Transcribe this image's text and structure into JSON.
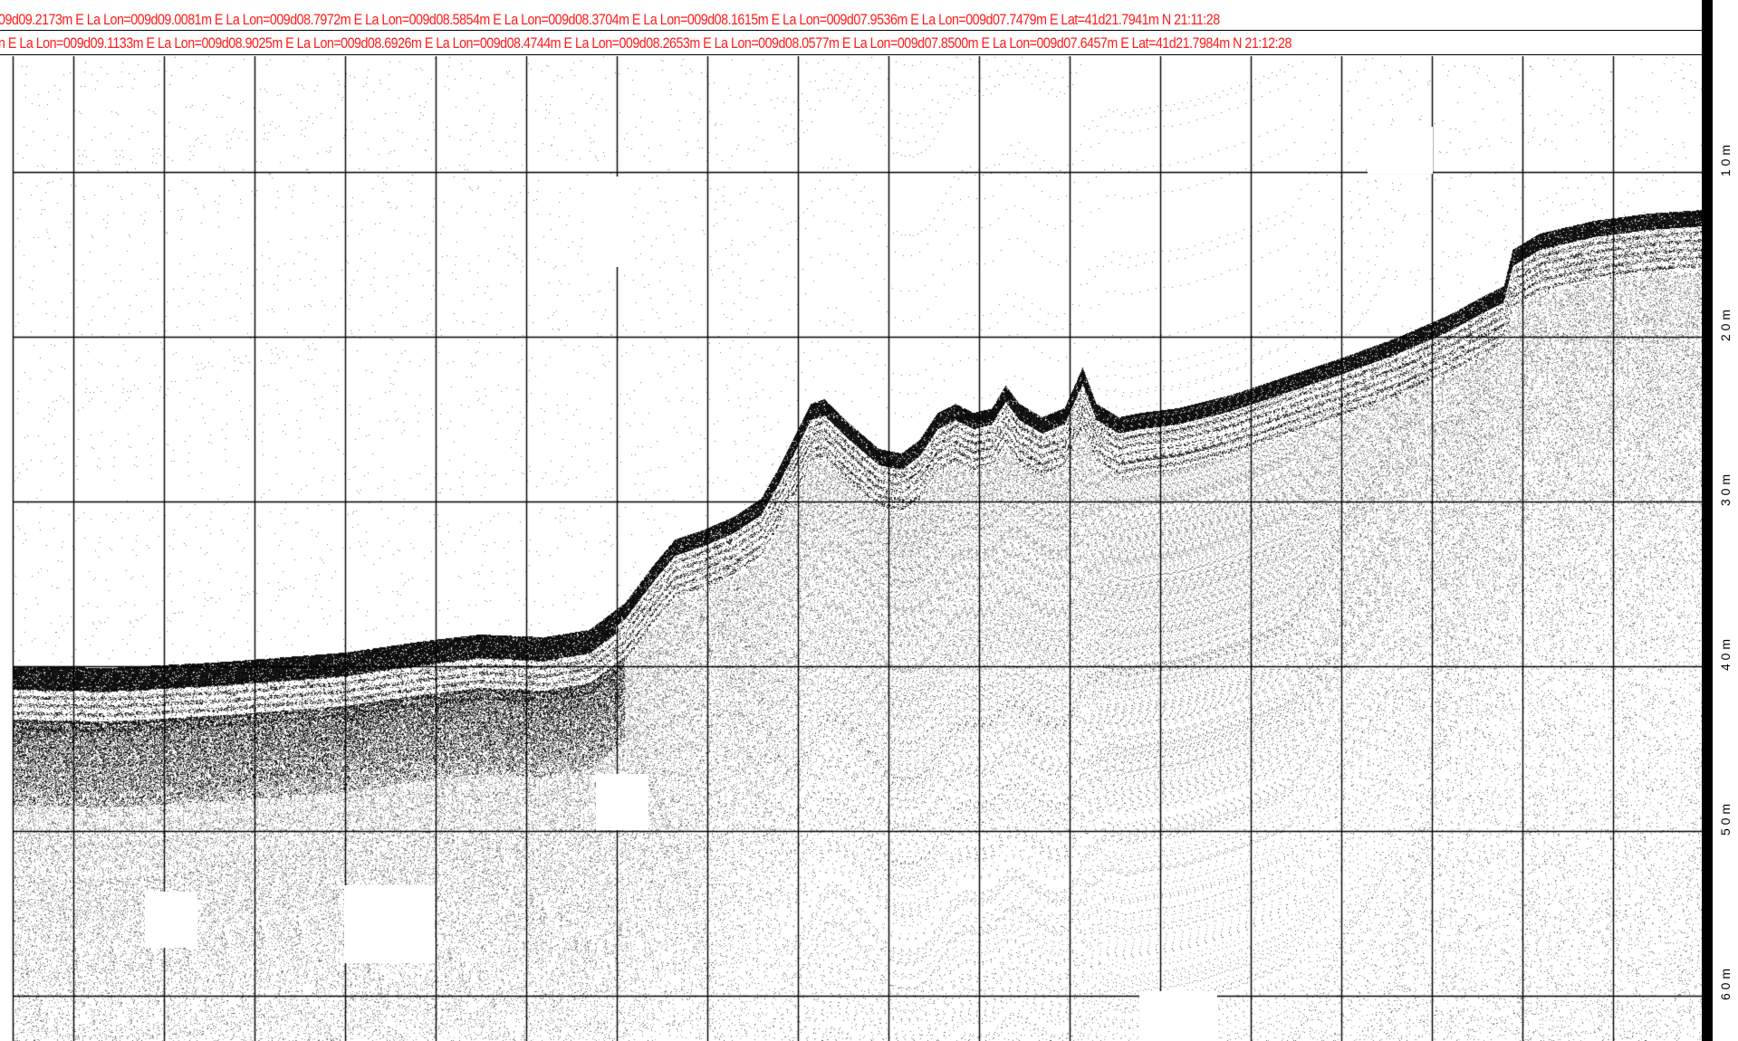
{
  "header": {
    "line1": "09d09.2173m E La Lon=009d09.0081m E La Lon=009d08.7972m E La Lon=009d08.5854m E La Lon=009d08.3704m E La Lon=009d08.1615m E La Lon=009d07.9536m E La Lon=009d07.7479m E Lat=41d21.7941m N 21:11:28",
    "line2": "n E La Lon=009d09.1133m E La Lon=009d08.9025m E La Lon=009d08.6926m E La Lon=009d08.4744m E La Lon=009d08.2653m E La Lon=009d08.0577m E La Lon=009d07.8500m E La Lon=009d07.6457m E Lat=41d21.7984m N 21:12:28"
  },
  "depth_scale": {
    "labels": [
      "1 0 m",
      "2 0 m",
      "3 0 m",
      "4 0 m",
      "5 0 m",
      "6 0 m"
    ]
  },
  "colors": {
    "header_text": "#ff1a1a",
    "grid": "#000000",
    "background": "#ffffff",
    "echo": "#000000"
  }
}
